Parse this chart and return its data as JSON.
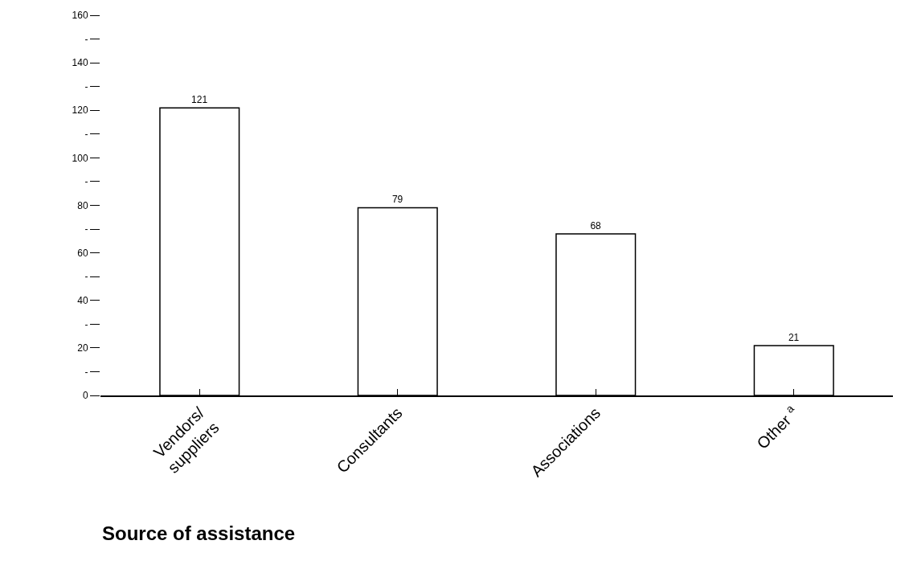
{
  "chart_data": {
    "type": "bar",
    "xlabel": "Source of assistance",
    "categories": [
      "Vendors/\nsuppliers",
      "Consultants",
      "Associations",
      "Other $^{a}$"
    ],
    "values": [
      121,
      79,
      68,
      21
    ],
    "color": "#ffffff",
    "data_labels": true,
    "ylim": [
      0,
      160
    ],
    "yticks": [
      0,
      {
        "value": 10,
        "label": "-"
      },
      20,
      {
        "value": 30,
        "label": "-"
      },
      40,
      {
        "value": 50,
        "label": "-"
      },
      60,
      {
        "value": 70,
        "label": "-"
      },
      80,
      {
        "value": 90,
        "label": "-"
      },
      100,
      {
        "value": 110,
        "label": "-"
      },
      120,
      {
        "value": 130,
        "label": "-"
      },
      140,
      {
        "value": 150,
        "label": "-"
      },
      160
    ],
    "legend": false
  }
}
